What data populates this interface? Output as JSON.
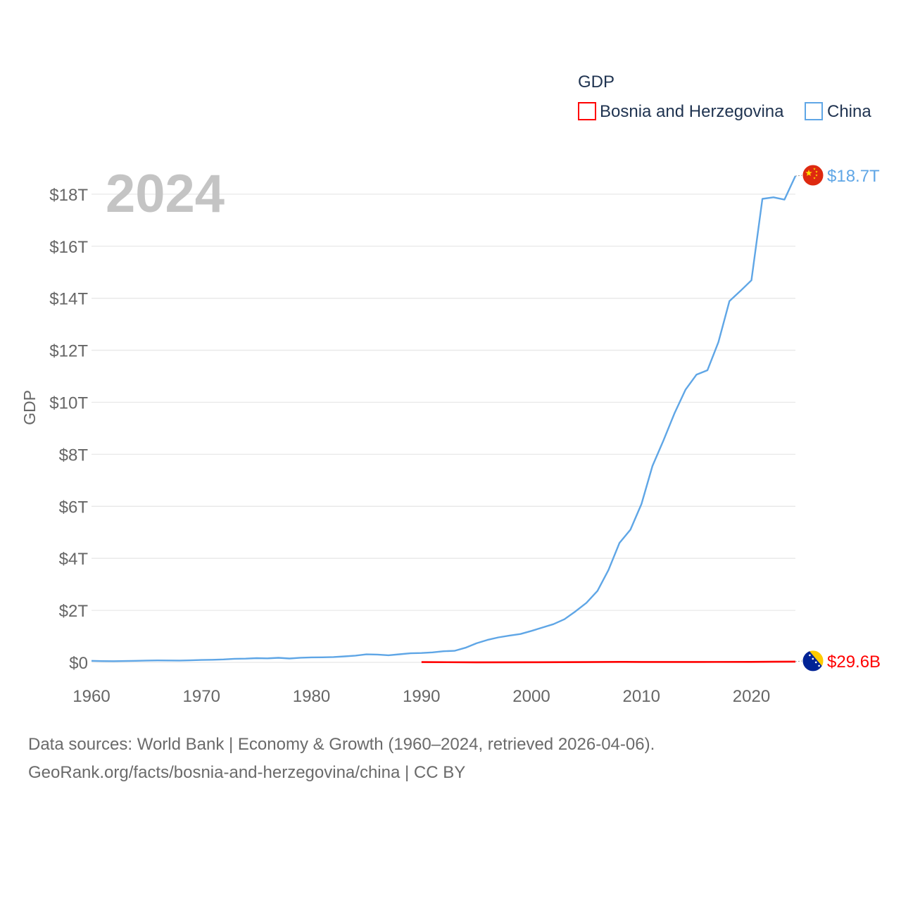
{
  "chart_data": {
    "type": "line",
    "legend_title": "GDP",
    "year_display": "2024",
    "ylabel": "GDP",
    "xlim": [
      1960,
      2024
    ],
    "ylim": [
      0,
      18.7
    ],
    "x_ticks": [
      1960,
      1970,
      1980,
      1990,
      2000,
      2010,
      2020
    ],
    "x_tick_labels": [
      "1960",
      "1970",
      "1980",
      "1990",
      "2000",
      "2010",
      "2020"
    ],
    "y_ticks": [
      0,
      2,
      4,
      6,
      8,
      10,
      12,
      14,
      16,
      18
    ],
    "y_tick_labels": [
      "$0",
      "$2T",
      "$4T",
      "$6T",
      "$8T",
      "$10T",
      "$12T",
      "$14T",
      "$16T",
      "$18T"
    ],
    "legend_position": "top-right",
    "series": [
      {
        "name": "Bosnia and Herzegovina",
        "color": "#ff0000",
        "end_label": "$29.6B",
        "flag": "bosnia-and-herzegovina-flag-icon",
        "x": [
          1990,
          1995,
          2000,
          2005,
          2008,
          2010,
          2015,
          2020,
          2022,
          2024
        ],
        "values": [
          0.012,
          0.003,
          0.006,
          0.011,
          0.019,
          0.017,
          0.016,
          0.02,
          0.025,
          0.0296
        ]
      },
      {
        "name": "China",
        "color": "#5fa6e6",
        "end_label": "$18.7T",
        "flag": "china-flag-icon",
        "x": [
          1960,
          1961,
          1962,
          1963,
          1964,
          1965,
          1966,
          1967,
          1968,
          1969,
          1970,
          1971,
          1972,
          1973,
          1974,
          1975,
          1976,
          1977,
          1978,
          1979,
          1980,
          1981,
          1982,
          1983,
          1984,
          1985,
          1986,
          1987,
          1988,
          1989,
          1990,
          1991,
          1992,
          1993,
          1994,
          1995,
          1996,
          1997,
          1998,
          1999,
          2000,
          2001,
          2002,
          2003,
          2004,
          2005,
          2006,
          2007,
          2008,
          2009,
          2010,
          2011,
          2012,
          2013,
          2014,
          2015,
          2016,
          2017,
          2018,
          2019,
          2020,
          2021,
          2022,
          2023,
          2024
        ],
        "values": [
          0.06,
          0.05,
          0.047,
          0.051,
          0.059,
          0.07,
          0.076,
          0.072,
          0.07,
          0.079,
          0.093,
          0.1,
          0.114,
          0.139,
          0.144,
          0.163,
          0.154,
          0.175,
          0.15,
          0.178,
          0.191,
          0.196,
          0.205,
          0.231,
          0.26,
          0.309,
          0.301,
          0.273,
          0.312,
          0.348,
          0.361,
          0.383,
          0.427,
          0.445,
          0.564,
          0.734,
          0.863,
          0.962,
          1.03,
          1.09,
          1.21,
          1.34,
          1.47,
          1.66,
          1.96,
          2.29,
          2.75,
          3.55,
          4.59,
          5.1,
          6.09,
          7.55,
          8.53,
          9.57,
          10.48,
          11.06,
          11.23,
          12.31,
          13.89,
          14.28,
          14.69,
          17.82,
          17.88,
          17.79,
          18.7
        ]
      }
    ]
  },
  "footer": {
    "line1": "Data sources: World Bank | Economy & Growth (1960–2024, retrieved 2026-04-06).",
    "line2": "GeoRank.org/facts/bosnia-and-herzegovina/china | CC BY"
  }
}
